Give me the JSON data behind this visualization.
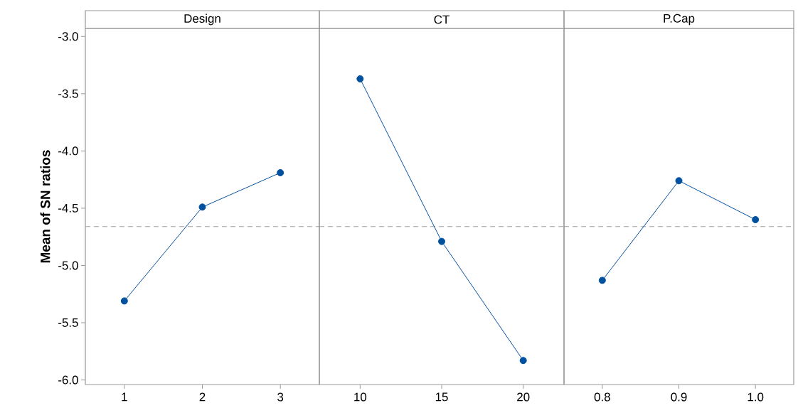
{
  "chart_data": [
    {
      "type": "line",
      "title": "Design",
      "ylabel": "Mean of SN ratios",
      "categories": [
        "1",
        "2",
        "3"
      ],
      "values": [
        -5.31,
        -4.49,
        -4.19
      ],
      "color": "#0050a0",
      "marker": "circle",
      "line_style": "solid",
      "ylim": [
        -6.04,
        -2.93
      ],
      "yticks": [
        {
          "value": -6.0,
          "label": "-6.0"
        },
        {
          "value": -5.5,
          "label": "-5.5"
        },
        {
          "value": -5.0,
          "label": "-5.0"
        },
        {
          "value": -4.5,
          "label": "-4.5"
        },
        {
          "value": -4.0,
          "label": "-4.0"
        },
        {
          "value": -3.5,
          "label": "-3.5"
        },
        {
          "value": -3.0,
          "label": "-3.0"
        }
      ],
      "ref_lines": [
        {
          "axis": "y",
          "value": -4.66,
          "color": "#a0a0a0",
          "line_style": "dashed"
        }
      ]
    },
    {
      "type": "line",
      "title": "CT",
      "categories": [
        "10",
        "15",
        "20"
      ],
      "values": [
        -3.37,
        -4.79,
        -5.83
      ],
      "color": "#0050a0",
      "marker": "circle",
      "line_style": "solid",
      "ylim": [
        -6.04,
        -2.93
      ],
      "tick_labels": "x",
      "ref_lines": [
        {
          "axis": "y",
          "value": -4.66,
          "color": "#a0a0a0",
          "line_style": "dashed"
        }
      ]
    },
    {
      "type": "line",
      "title": "P.Cap",
      "categories": [
        "0.8",
        "0.9",
        "1.0"
      ],
      "values": [
        -5.13,
        -4.26,
        -4.6
      ],
      "color": "#0050a0",
      "marker": "circle",
      "line_style": "solid",
      "ylim": [
        -6.04,
        -2.93
      ],
      "tick_labels": "x",
      "ref_lines": [
        {
          "axis": "y",
          "value": -4.66,
          "color": "#a0a0a0",
          "line_style": "dashed"
        }
      ]
    }
  ]
}
